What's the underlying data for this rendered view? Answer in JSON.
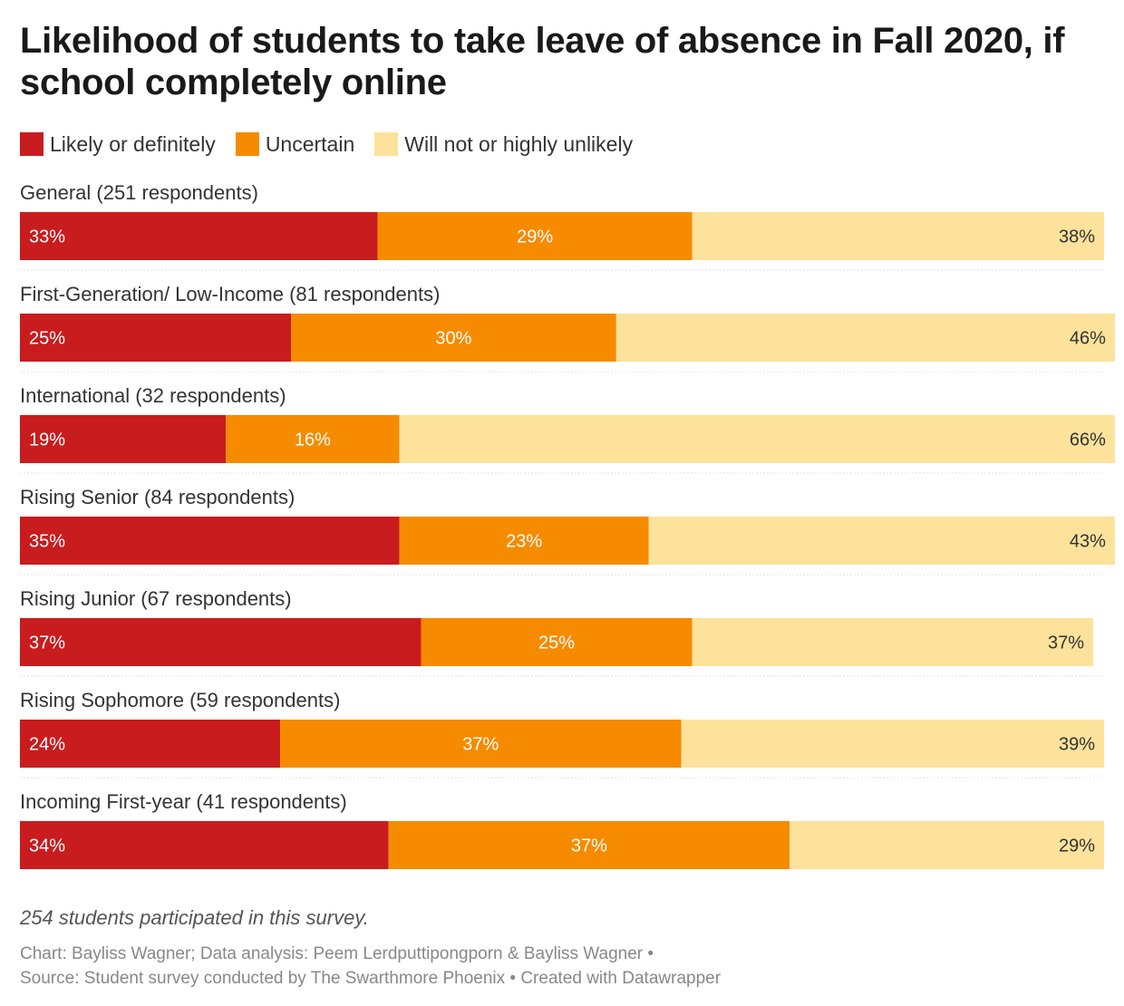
{
  "chart_data": {
    "type": "bar",
    "orientation": "horizontal",
    "stacked": true,
    "title": "Likelihood of students to take leave of absence in Fall 2020, if school completely online",
    "categories": [
      "General (251 respondents)",
      "First-Generation/ Low-Income (81 respondents)",
      "International (32 respondents)",
      "Rising Senior (84 respondents)",
      "Rising Junior (67 respondents)",
      "Rising Sophomore (59 respondents)",
      "Incoming First-year (41 respondents)"
    ],
    "series": [
      {
        "name": "Likely or definitely",
        "color": "#c91c1e",
        "label_color": "#ffffff",
        "label_align": "left",
        "values": [
          33,
          25,
          19,
          35,
          37,
          24,
          34
        ]
      },
      {
        "name": "Uncertain",
        "color": "#f68b00",
        "label_color": "#ffffff",
        "label_align": "center",
        "values": [
          29,
          30,
          16,
          23,
          25,
          37,
          37
        ]
      },
      {
        "name": "Will not or highly unlikely",
        "color": "#fde29b",
        "label_color": "#333333",
        "label_align": "right",
        "values": [
          38,
          46,
          66,
          43,
          37,
          39,
          29
        ]
      }
    ],
    "value_suffix": "%",
    "xlim": [
      0,
      100
    ],
    "legend_position": "top-left",
    "grid": false
  },
  "footer": {
    "note": "254 students participated in this survey.",
    "credit_line1": "Chart: Bayliss Wagner; Data analysis: Peem Lerdputtipongporn & Bayliss Wagner •",
    "credit_line2": "Source: Student survey conducted by The Swarthmore Phoenix • Created with Datawrapper"
  }
}
